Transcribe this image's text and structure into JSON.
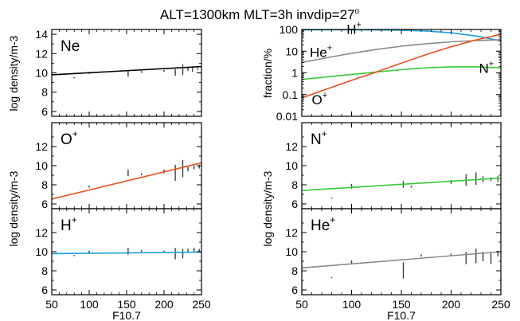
{
  "figure": {
    "title": "ALT=1300km   MLT=3h   invdip=27",
    "title_superscript": "o",
    "background": "#ffffff",
    "axis_color": "#000000"
  },
  "chart_data": [
    {
      "id": "ne",
      "type": "line",
      "label": "Ne",
      "ylabel": "log density/m-3",
      "xlabel": "",
      "xlim": [
        50,
        250
      ],
      "ylim": [
        5.5,
        14.5
      ],
      "yticks": [
        "6",
        "8",
        "10",
        "12",
        "14"
      ],
      "yticks_values": [
        6,
        8,
        10,
        12,
        14
      ],
      "xticks_values": [
        50,
        100,
        150,
        200,
        250
      ],
      "series": [
        {
          "x": [
            50,
            250
          ],
          "y": [
            9.8,
            10.65
          ],
          "color": "#000000"
        }
      ],
      "scatter": [
        {
          "x": 80,
          "y": 9.5,
          "lo": 9.5,
          "hi": 9.5
        },
        {
          "x": 100,
          "y": 10.0,
          "lo": 9.9,
          "hi": 10.1
        },
        {
          "x": 152,
          "y": 9.9,
          "lo": 9.6,
          "hi": 10.3
        },
        {
          "x": 170,
          "y": 10.1,
          "lo": 10.0,
          "hi": 10.2
        },
        {
          "x": 200,
          "y": 10.2,
          "lo": 10.1,
          "hi": 10.3
        },
        {
          "x": 215,
          "y": 10.1,
          "lo": 9.7,
          "hi": 10.4
        },
        {
          "x": 225,
          "y": 10.3,
          "lo": 9.8,
          "hi": 10.9
        },
        {
          "x": 232,
          "y": 10.4,
          "lo": 10.2,
          "hi": 10.6
        },
        {
          "x": 238,
          "y": 10.3,
          "lo": 10.1,
          "hi": 10.5
        },
        {
          "x": 245,
          "y": 10.4,
          "lo": 10.3,
          "hi": 10.5
        }
      ]
    },
    {
      "id": "fraction",
      "type": "line",
      "yscale": "log",
      "ylabel": "fraction/%",
      "xlabel": "",
      "xlim": [
        50,
        250
      ],
      "ylim": [
        0.01,
        100
      ],
      "yticks": [
        "0.01",
        "0.1",
        "1",
        "10",
        "100"
      ],
      "yticks_values": [
        0.01,
        0.1,
        1,
        10,
        100
      ],
      "xticks_values": [
        50,
        100,
        150,
        200,
        250
      ],
      "series": [
        {
          "name": "H+",
          "color": "#1e9fe0",
          "x": [
            50,
            75,
            100,
            125,
            150,
            175,
            200,
            225,
            250
          ],
          "y": [
            95,
            96,
            96,
            95,
            92,
            85,
            70,
            50,
            30
          ]
        },
        {
          "name": "He+",
          "color": "#8a8a8a",
          "x": [
            50,
            75,
            100,
            125,
            150,
            175,
            200,
            225,
            250
          ],
          "y": [
            3,
            5,
            8,
            12,
            17,
            22,
            27,
            31,
            34
          ]
        },
        {
          "name": "N+",
          "color": "#33cc33",
          "x": [
            50,
            75,
            100,
            125,
            150,
            175,
            200,
            225,
            250
          ],
          "y": [
            0.5,
            0.65,
            0.85,
            1.1,
            1.4,
            1.7,
            1.9,
            1.9,
            1.7
          ]
        },
        {
          "name": "O+",
          "color": "#e8501e",
          "x": [
            50,
            75,
            100,
            125,
            150,
            175,
            200,
            225,
            250
          ],
          "y": [
            0.07,
            0.18,
            0.45,
            1.1,
            2.8,
            7,
            16,
            33,
            60
          ]
        }
      ],
      "labels": [
        {
          "text": "H",
          "sup": "+",
          "x": 95,
          "y": 62
        },
        {
          "text": "He",
          "sup": "+",
          "x": 58,
          "y": 5.5
        },
        {
          "text": "N",
          "sup": "+",
          "x": 228,
          "y": 1.0
        },
        {
          "text": "O",
          "sup": "+",
          "x": 60,
          "y": 0.035
        }
      ]
    },
    {
      "id": "oplus",
      "type": "line",
      "label": "O",
      "label_sup": "+",
      "ylabel": "",
      "xlabel": "",
      "xlim": [
        50,
        250
      ],
      "ylim": [
        5.5,
        14.5
      ],
      "yticks": [
        "6",
        "8",
        "10",
        "12"
      ],
      "yticks_values": [
        6,
        8,
        10,
        12
      ],
      "xticks_values": [
        50,
        100,
        150,
        200,
        250
      ],
      "series": [
        {
          "x": [
            50,
            250
          ],
          "y": [
            6.5,
            10.3
          ],
          "color": "#e8501e"
        }
      ],
      "scatter": [
        {
          "x": 100,
          "y": 7.8,
          "lo": 7.7,
          "hi": 7.9
        },
        {
          "x": 152,
          "y": 9.2,
          "lo": 8.9,
          "hi": 9.6
        },
        {
          "x": 170,
          "y": 9.1,
          "lo": 9.0,
          "hi": 9.2
        },
        {
          "x": 200,
          "y": 9.4,
          "lo": 9.2,
          "hi": 9.6
        },
        {
          "x": 215,
          "y": 9.2,
          "lo": 8.4,
          "hi": 10.1
        },
        {
          "x": 225,
          "y": 9.6,
          "lo": 8.8,
          "hi": 10.6
        },
        {
          "x": 232,
          "y": 9.7,
          "lo": 9.4,
          "hi": 10.0
        },
        {
          "x": 240,
          "y": 9.8,
          "lo": 9.6,
          "hi": 10.0
        },
        {
          "x": 247,
          "y": 9.9,
          "lo": 9.7,
          "hi": 10.1
        }
      ]
    },
    {
      "id": "nplus",
      "type": "line",
      "label": "N",
      "label_sup": "+",
      "ylabel": "",
      "xlabel": "",
      "xlim": [
        50,
        250
      ],
      "ylim": [
        5.5,
        14.5
      ],
      "yticks": [
        "6",
        "8",
        "10",
        "12"
      ],
      "yticks_values": [
        6,
        8,
        10,
        12
      ],
      "xticks_values": [
        50,
        100,
        150,
        200,
        250
      ],
      "series": [
        {
          "x": [
            50,
            250
          ],
          "y": [
            7.4,
            8.7
          ],
          "color": "#33cc33"
        }
      ],
      "scatter": [
        {
          "x": 80,
          "y": 6.6,
          "lo": 6.6,
          "hi": 6.6
        },
        {
          "x": 100,
          "y": 7.8,
          "lo": 7.6,
          "hi": 8.1
        },
        {
          "x": 152,
          "y": 8.0,
          "lo": 7.7,
          "hi": 8.4
        },
        {
          "x": 160,
          "y": 7.8,
          "lo": 7.7,
          "hi": 7.9
        },
        {
          "x": 200,
          "y": 8.3,
          "lo": 8.1,
          "hi": 8.5
        },
        {
          "x": 215,
          "y": 8.4,
          "lo": 7.9,
          "hi": 9.1
        },
        {
          "x": 225,
          "y": 8.5,
          "lo": 8.0,
          "hi": 9.3
        },
        {
          "x": 232,
          "y": 8.6,
          "lo": 8.3,
          "hi": 8.9
        },
        {
          "x": 240,
          "y": 8.6,
          "lo": 8.4,
          "hi": 8.8
        },
        {
          "x": 247,
          "y": 8.6,
          "lo": 8.3,
          "hi": 8.9
        }
      ]
    },
    {
      "id": "hplus",
      "type": "line",
      "label": "H",
      "label_sup": "+",
      "ylabel": "log density/m-3",
      "xlabel": "F10.7",
      "xlim": [
        50,
        250
      ],
      "ylim": [
        5.5,
        14.5
      ],
      "yticks": [
        "6",
        "8",
        "10",
        "12"
      ],
      "yticks_values": [
        6,
        8,
        10,
        12
      ],
      "xticks": [
        "50",
        "100",
        "150",
        "200",
        "250"
      ],
      "xticks_values": [
        50,
        100,
        150,
        200,
        250
      ],
      "series": [
        {
          "x": [
            50,
            250
          ],
          "y": [
            9.8,
            9.95
          ],
          "color": "#1e9fe0"
        }
      ],
      "scatter": [
        {
          "x": 80,
          "y": 9.6,
          "lo": 9.6,
          "hi": 9.6
        },
        {
          "x": 100,
          "y": 10.0,
          "lo": 9.9,
          "hi": 10.1
        },
        {
          "x": 152,
          "y": 10.0,
          "lo": 9.7,
          "hi": 10.4
        },
        {
          "x": 170,
          "y": 10.1,
          "lo": 10.0,
          "hi": 10.2
        },
        {
          "x": 200,
          "y": 10.0,
          "lo": 9.9,
          "hi": 10.1
        },
        {
          "x": 215,
          "y": 9.9,
          "lo": 9.2,
          "hi": 10.4
        },
        {
          "x": 225,
          "y": 9.8,
          "lo": 9.3,
          "hi": 10.3
        },
        {
          "x": 232,
          "y": 10.1,
          "lo": 9.9,
          "hi": 10.3
        },
        {
          "x": 240,
          "y": 10.2,
          "lo": 10.0,
          "hi": 10.4
        },
        {
          "x": 247,
          "y": 10.1,
          "lo": 9.9,
          "hi": 10.3
        }
      ]
    },
    {
      "id": "heplus",
      "type": "line",
      "label": "He",
      "label_sup": "+",
      "ylabel": "log density/m-3",
      "xlabel": "F10.7",
      "xlim": [
        50,
        250
      ],
      "ylim": [
        5.5,
        14.5
      ],
      "yticks": [
        "6",
        "8",
        "10",
        "12"
      ],
      "yticks_values": [
        6,
        8,
        10,
        12
      ],
      "xticks": [
        "50",
        "100",
        "150",
        "200",
        "250"
      ],
      "xticks_values": [
        50,
        100,
        150,
        200,
        250
      ],
      "series": [
        {
          "x": [
            50,
            250
          ],
          "y": [
            8.3,
            10.0
          ],
          "color": "#8a8a8a"
        }
      ],
      "scatter": [
        {
          "x": 80,
          "y": 7.3,
          "lo": 7.3,
          "hi": 7.3
        },
        {
          "x": 100,
          "y": 8.9,
          "lo": 8.7,
          "hi": 9.1
        },
        {
          "x": 152,
          "y": 8.0,
          "lo": 7.2,
          "hi": 8.9
        },
        {
          "x": 170,
          "y": 9.6,
          "lo": 9.5,
          "hi": 9.7
        },
        {
          "x": 200,
          "y": 9.7,
          "lo": 9.6,
          "hi": 9.8
        },
        {
          "x": 215,
          "y": 9.4,
          "lo": 8.7,
          "hi": 10.0
        },
        {
          "x": 225,
          "y": 9.6,
          "lo": 8.8,
          "hi": 10.3
        },
        {
          "x": 232,
          "y": 9.6,
          "lo": 9.0,
          "hi": 10.0
        },
        {
          "x": 240,
          "y": 9.4,
          "lo": 8.7,
          "hi": 9.9
        },
        {
          "x": 247,
          "y": 9.8,
          "lo": 9.5,
          "hi": 10.1
        }
      ]
    }
  ]
}
